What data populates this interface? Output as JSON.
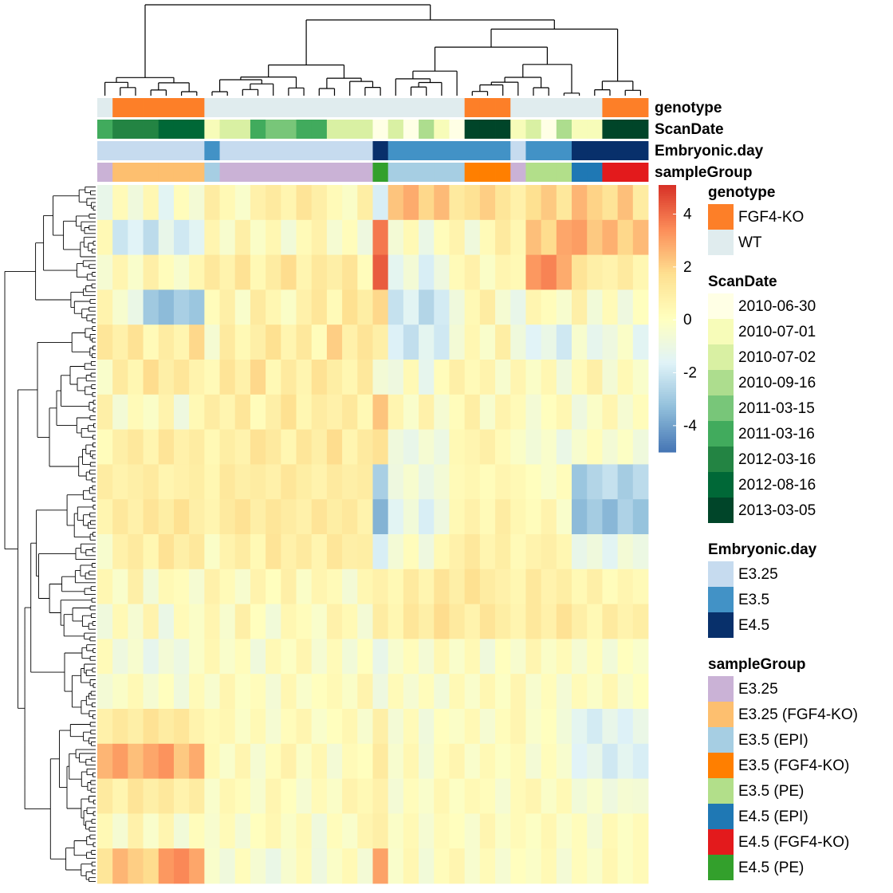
{
  "chart_data": {
    "type": "heatmap",
    "values": [
      [
        -1.2,
        0.3,
        -0.8,
        0.5,
        -1.5,
        0.2,
        -0.6,
        1.1,
        0.4,
        -0.3,
        0.8,
        1.2,
        0.6,
        1.5,
        0.9,
        0.3,
        -0.2,
        1.0,
        -1.8,
        2.3,
        2.8,
        1.9,
        2.5,
        1.2,
        1.6,
        2.1,
        1.4,
        0.8,
        1.7,
        2.2,
        1.3,
        2.6,
        2.0,
        1.5,
        2.4,
        1.1
      ],
      [
        0.4,
        -2.1,
        -1.6,
        -2.4,
        -1.2,
        -2.0,
        -1.5,
        0.6,
        -0.4,
        0.9,
        -0.2,
        0.5,
        -0.7,
        0.3,
        0.8,
        -0.5,
        0.2,
        -0.9,
        3.8,
        -0.6,
        0.4,
        -1.1,
        0.2,
        0.7,
        -0.8,
        0.3,
        1.2,
        0.5,
        2.4,
        1.8,
        2.9,
        3.1,
        2.2,
        2.7,
        1.9,
        2.5
      ],
      [
        -0.5,
        0.6,
        -0.3,
        0.9,
        0.2,
        -0.4,
        0.5,
        1.3,
        0.7,
        1.6,
        0.4,
        1.1,
        1.8,
        0.6,
        1.3,
        0.9,
        1.5,
        0.2,
        4.3,
        -1.4,
        -0.6,
        -1.8,
        -0.9,
        0.3,
        0.8,
        -0.2,
        0.6,
        0.4,
        3.2,
        3.6,
        2.8,
        1.5,
        0.9,
        0.7,
        1.2,
        0.5
      ],
      [
        0.7,
        -0.4,
        -1.1,
        -3.0,
        -3.4,
        -2.8,
        -3.1,
        0.2,
        0.9,
        -0.3,
        1.2,
        0.5,
        -0.2,
        0.8,
        1.4,
        0.3,
        1.7,
        1.0,
        1.9,
        -2.2,
        -1.5,
        -2.6,
        -1.9,
        -0.8,
        0.4,
        1.1,
        -0.5,
        -1.2,
        0.6,
        0.2,
        -0.4,
        0.9,
        -0.7,
        0.3,
        -0.9,
        0.1
      ],
      [
        1.4,
        0.8,
        1.6,
        0.3,
        1.1,
        0.6,
        1.9,
        -0.5,
        1.2,
        0.4,
        0.9,
        1.7,
        0.6,
        1.3,
        0.2,
        2.1,
        0.8,
        1.5,
        0.9,
        -1.7,
        -2.3,
        -1.4,
        -2.0,
        -0.6,
        0.5,
        -0.3,
        1.0,
        -0.8,
        -1.6,
        -1.1,
        -2.0,
        -0.4,
        -1.3,
        -0.9,
        -0.2,
        -1.5
      ],
      [
        -0.3,
        1.2,
        0.5,
        1.8,
        0.9,
        1.4,
        0.7,
        0.3,
        1.5,
        0.8,
        1.9,
        0.4,
        1.2,
        0.6,
        1.6,
        1.0,
        0.5,
        1.3,
        -0.6,
        -0.9,
        0.4,
        -1.3,
        0.2,
        0.9,
        0.3,
        0.7,
        -0.4,
        0.6,
        -0.2,
        0.5,
        -0.8,
        0.3,
        0.9,
        -0.6,
        0.4,
        -0.3
      ],
      [
        0.9,
        -0.6,
        0.3,
        -0.2,
        0.7,
        -0.9,
        0.4,
        1.1,
        0.6,
        1.4,
        0.2,
        0.9,
        1.7,
        0.5,
        1.1,
        0.8,
        1.3,
        0.4,
        2.3,
        0.6,
        -0.3,
        0.8,
        -0.5,
        0.2,
        1.0,
        -0.4,
        0.7,
        0.3,
        -0.6,
        0.1,
        0.5,
        -0.9,
        -0.2,
        0.6,
        -0.5,
        0.2
      ],
      [
        0.2,
        0.9,
        1.3,
        0.6,
        1.5,
        0.8,
        1.1,
        0.4,
        1.0,
        0.7,
        1.6,
        1.2,
        0.5,
        1.4,
        0.9,
        1.8,
        0.6,
        1.2,
        1.6,
        -0.8,
        -1.2,
        -0.5,
        -1.0,
        0.4,
        0.6,
        0.9,
        0.3,
        -0.2,
        -0.7,
        -0.3,
        -1.1,
        -0.4,
        0.2,
        -0.6,
        -0.1,
        -0.8
      ],
      [
        1.1,
        0.7,
        0.9,
        1.2,
        0.6,
        0.8,
        1.0,
        0.5,
        1.3,
        0.9,
        1.1,
        0.8,
        1.4,
        1.0,
        0.7,
        1.2,
        0.9,
        1.1,
        -2.8,
        -0.9,
        -0.4,
        -1.1,
        -0.6,
        0.3,
        0.5,
        0.2,
        0.6,
        0.4,
        0.1,
        -0.3,
        0.2,
        -3.1,
        -2.6,
        -2.2,
        -2.9,
        -2.4
      ],
      [
        0.6,
        1.3,
        0.8,
        1.5,
        1.0,
        1.7,
        0.9,
        0.6,
        1.2,
        1.6,
        0.9,
        1.4,
        1.1,
        0.8,
        1.5,
        1.0,
        1.3,
        0.7,
        -3.6,
        -1.5,
        -0.7,
        -1.8,
        -0.9,
        0.4,
        0.8,
        0.3,
        1.1,
        0.5,
        0.2,
        0.7,
        -0.3,
        -3.4,
        -2.9,
        -3.5,
        -2.7,
        -3.2
      ],
      [
        -0.4,
        0.8,
        1.2,
        0.5,
        1.6,
        0.9,
        1.3,
        -0.2,
        0.7,
        1.1,
        0.4,
        1.5,
        0.8,
        1.2,
        0.6,
        1.4,
        0.9,
        1.0,
        -1.8,
        -0.6,
        0.2,
        -0.9,
        0.4,
        0.8,
        1.3,
        0.6,
        1.0,
        0.3,
        0.7,
        0.9,
        0.5,
        -1.2,
        -0.8,
        -1.5,
        -0.6,
        -1.0
      ],
      [
        0.5,
        -0.3,
        0.9,
        -0.7,
        0.4,
        0.2,
        -0.5,
        0.8,
        0.3,
        -0.4,
        0.7,
        0.1,
        0.9,
        -0.2,
        0.6,
        0.3,
        -0.6,
        0.5,
        0.8,
        0.4,
        1.2,
        0.6,
        1.5,
        0.9,
        1.7,
        1.1,
        0.8,
        0.5,
        1.3,
        0.7,
        1.0,
        0.4,
        0.9,
        0.2,
        0.6,
        0.3
      ],
      [
        -0.8,
        0.4,
        -0.5,
        0.7,
        -1.1,
        0.3,
        -0.2,
        0.6,
        -0.4,
        0.9,
        0.1,
        -0.7,
        0.5,
        0.2,
        -0.3,
        0.8,
        0.4,
        -0.6,
        1.1,
        0.5,
        1.4,
        0.9,
        1.8,
        1.2,
        0.7,
        1.5,
        1.0,
        0.6,
        1.3,
        0.8,
        1.6,
        0.9,
        0.4,
        1.2,
        0.7,
        1.0
      ],
      [
        0.3,
        -0.9,
        -0.4,
        -1.3,
        -0.6,
        -1.0,
        -0.2,
        0.5,
        -0.3,
        0.2,
        -0.8,
        0.4,
        -0.1,
        0.6,
        -0.5,
        0.3,
        -0.7,
        0.1,
        -1.2,
        -0.4,
        0.2,
        -0.6,
        0.5,
        -0.3,
        0.4,
        -0.8,
        0.1,
        -0.4,
        0.6,
        -0.2,
        0.3,
        -0.5,
        0.2,
        -0.7,
        0.1,
        -0.3
      ],
      [
        -0.6,
        -0.2,
        0.4,
        -0.5,
        0.1,
        -0.8,
        0.3,
        -0.4,
        0.6,
        -0.1,
        0.2,
        -0.6,
        0.5,
        -0.3,
        0.1,
        0.4,
        -0.2,
        0.7,
        -0.9,
        0.3,
        -0.5,
        0.2,
        -0.7,
        0.4,
        -0.3,
        0.5,
        -0.1,
        0.6,
        -0.4,
        0.2,
        -0.6,
        0.3,
        -0.2,
        0.5,
        -0.4,
        0.1
      ],
      [
        0.8,
        1.3,
        0.9,
        1.6,
        1.1,
        1.4,
        0.7,
        0.3,
        0.5,
        -0.2,
        0.4,
        -0.5,
        0.2,
        0.6,
        -0.3,
        0.1,
        0.5,
        -0.4,
        0.9,
        -0.6,
        0.3,
        -0.8,
        0.1,
        -0.2,
        0.4,
        -0.5,
        0.2,
        0.6,
        -0.3,
        0.1,
        -0.7,
        -1.4,
        -1.9,
        -1.2,
        -1.7,
        -1.1
      ],
      [
        2.6,
        3.1,
        2.4,
        2.9,
        3.3,
        2.2,
        2.8,
        0.4,
        -0.3,
        0.6,
        -0.5,
        0.2,
        0.8,
        -0.2,
        0.5,
        -0.6,
        0.3,
        0.1,
        1.2,
        -0.4,
        0.5,
        -0.7,
        0.2,
        0.6,
        -0.3,
        0.4,
        -0.1,
        0.3,
        -0.6,
        0.2,
        -0.4,
        -1.6,
        -1.2,
        -2.0,
        -1.4,
        -1.8
      ],
      [
        1.2,
        0.6,
        1.5,
        0.9,
        1.3,
        0.7,
        1.1,
        -0.3,
        0.5,
        0.2,
        -0.4,
        0.6,
        0.1,
        -0.5,
        0.3,
        -0.2,
        0.7,
        0.4,
        0.8,
        -0.6,
        0.2,
        -0.3,
        0.5,
        -0.1,
        0.4,
        0.2,
        -0.5,
        0.3,
        0.6,
        -0.2,
        0.4,
        -0.7,
        -0.3,
        -0.9,
        -0.5,
        -0.6
      ],
      [
        0.4,
        -0.5,
        0.8,
        -0.3,
        0.6,
        -0.7,
        0.2,
        -0.4,
        0.3,
        -0.6,
        0.1,
        0.5,
        -0.2,
        0.4,
        -0.8,
        0.2,
        -0.3,
        0.6,
        0.9,
        -0.2,
        0.4,
        -0.5,
        0.3,
        0.1,
        -0.4,
        0.6,
        -0.2,
        0.3,
        -0.1,
        0.5,
        -0.3,
        0.2,
        -0.6,
        0.4,
        -0.1,
        0.3
      ],
      [
        1.4,
        2.6,
        2.1,
        1.8,
        3.2,
        3.5,
        2.9,
        -0.3,
        -0.8,
        0.2,
        -0.5,
        -1.1,
        -0.4,
        0.3,
        -0.9,
        -0.2,
        0.4,
        -0.6,
        3.0,
        -0.3,
        0.5,
        -0.7,
        0.2,
        0.6,
        -0.4,
        0.3,
        -0.5,
        0.1,
        -0.2,
        0.4,
        -0.6,
        0.2,
        -0.3,
        0.5,
        -0.1,
        0.3
      ]
    ],
    "color_scale": {
      "colors": [
        "#4575b4",
        "#91bfdb",
        "#e0f3f8",
        "#ffffbf",
        "#fee090",
        "#fc8d59",
        "#d73027"
      ],
      "lim": [
        -5,
        5.1
      ],
      "ticks": [
        4,
        2,
        0,
        -2,
        -4
      ]
    },
    "annotations": [
      {
        "name": "genotype",
        "levels": [
          {
            "label": "FGF4-KO",
            "color": "#fd7f28"
          },
          {
            "label": "WT",
            "color": "#e0ecee"
          }
        ],
        "values": [
          "WT",
          "FGF4-KO",
          "FGF4-KO",
          "FGF4-KO",
          "FGF4-KO",
          "FGF4-KO",
          "FGF4-KO",
          "WT",
          "WT",
          "WT",
          "WT",
          "WT",
          "WT",
          "WT",
          "WT",
          "WT",
          "WT",
          "WT",
          "WT",
          "WT",
          "WT",
          "WT",
          "WT",
          "WT",
          "FGF4-KO",
          "FGF4-KO",
          "FGF4-KO",
          "WT",
          "WT",
          "WT",
          "WT",
          "WT",
          "WT",
          "FGF4-KO",
          "FGF4-KO",
          "FGF4-KO"
        ]
      },
      {
        "name": "ScanDate",
        "levels": [
          {
            "label": "2010-06-30",
            "color": "#ffffe5"
          },
          {
            "label": "2010-07-01",
            "color": "#f7fcb9"
          },
          {
            "label": "2010-07-02",
            "color": "#d9f0a3"
          },
          {
            "label": "2010-09-16",
            "color": "#addd8e"
          },
          {
            "label": "2011-03-15",
            "color": "#78c679"
          },
          {
            "label": "2011-03-16",
            "color": "#41ab5d"
          },
          {
            "label": "2012-03-16",
            "color": "#238443"
          },
          {
            "label": "2012-08-16",
            "color": "#006837"
          },
          {
            "label": "2013-03-05",
            "color": "#004529"
          }
        ],
        "values": [
          "2011-03-16",
          "2012-03-16",
          "2012-03-16",
          "2012-03-16",
          "2012-08-16",
          "2012-08-16",
          "2012-08-16",
          "2010-07-01",
          "2010-07-02",
          "2010-07-02",
          "2011-03-16",
          "2011-03-15",
          "2011-03-15",
          "2011-03-16",
          "2011-03-16",
          "2010-07-02",
          "2010-07-02",
          "2010-07-02",
          "2010-06-30",
          "2010-07-02",
          "2010-06-30",
          "2010-09-16",
          "2010-07-01",
          "2010-06-30",
          "2013-03-05",
          "2013-03-05",
          "2013-03-05",
          "2010-07-01",
          "2010-07-02",
          "2010-06-30",
          "2010-09-16",
          "2010-07-01",
          "2010-07-01",
          "2013-03-05",
          "2013-03-05",
          "2013-03-05"
        ]
      },
      {
        "name": "Embryonic.day",
        "levels": [
          {
            "label": "E3.25",
            "color": "#c6dbef"
          },
          {
            "label": "E3.5",
            "color": "#4292c6"
          },
          {
            "label": "E4.5",
            "color": "#08306b"
          }
        ],
        "values": [
          "E3.25",
          "E3.25",
          "E3.25",
          "E3.25",
          "E3.25",
          "E3.25",
          "E3.25",
          "E3.5",
          "E3.25",
          "E3.25",
          "E3.25",
          "E3.25",
          "E3.25",
          "E3.25",
          "E3.25",
          "E3.25",
          "E3.25",
          "E3.25",
          "E4.5",
          "E3.5",
          "E3.5",
          "E3.5",
          "E3.5",
          "E3.5",
          "E3.5",
          "E3.5",
          "E3.5",
          "E3.25",
          "E3.5",
          "E3.5",
          "E3.5",
          "E4.5",
          "E4.5",
          "E4.5",
          "E4.5",
          "E4.5"
        ]
      },
      {
        "name": "sampleGroup",
        "levels": [
          {
            "label": "E3.25",
            "color": "#cab2d6"
          },
          {
            "label": "E3.25 (FGF4-KO)",
            "color": "#fdbf6f"
          },
          {
            "label": "E3.5 (EPI)",
            "color": "#a6cee3"
          },
          {
            "label": "E3.5 (FGF4-KO)",
            "color": "#ff7f00"
          },
          {
            "label": "E3.5 (PE)",
            "color": "#b2df8a"
          },
          {
            "label": "E4.5 (EPI)",
            "color": "#1f78b4"
          },
          {
            "label": "E4.5 (FGF4-KO)",
            "color": "#e31a1c"
          },
          {
            "label": "E4.5 (PE)",
            "color": "#33a02c"
          }
        ],
        "values": [
          "E3.25",
          "E3.25 (FGF4-KO)",
          "E3.25 (FGF4-KO)",
          "E3.25 (FGF4-KO)",
          "E3.25 (FGF4-KO)",
          "E3.25 (FGF4-KO)",
          "E3.25 (FGF4-KO)",
          "E3.5 (EPI)",
          "E3.25",
          "E3.25",
          "E3.25",
          "E3.25",
          "E3.25",
          "E3.25",
          "E3.25",
          "E3.25",
          "E3.25",
          "E3.25",
          "E4.5 (PE)",
          "E3.5 (EPI)",
          "E3.5 (EPI)",
          "E3.5 (EPI)",
          "E3.5 (EPI)",
          "E3.5 (EPI)",
          "E3.5 (FGF4-KO)",
          "E3.5 (FGF4-KO)",
          "E3.5 (FGF4-KO)",
          "E3.25",
          "E3.5 (PE)",
          "E3.5 (PE)",
          "E3.5 (PE)",
          "E4.5 (EPI)",
          "E4.5 (EPI)",
          "E4.5 (FGF4-KO)",
          "E4.5 (FGF4-KO)",
          "E4.5 (FGF4-KO)"
        ]
      }
    ]
  }
}
